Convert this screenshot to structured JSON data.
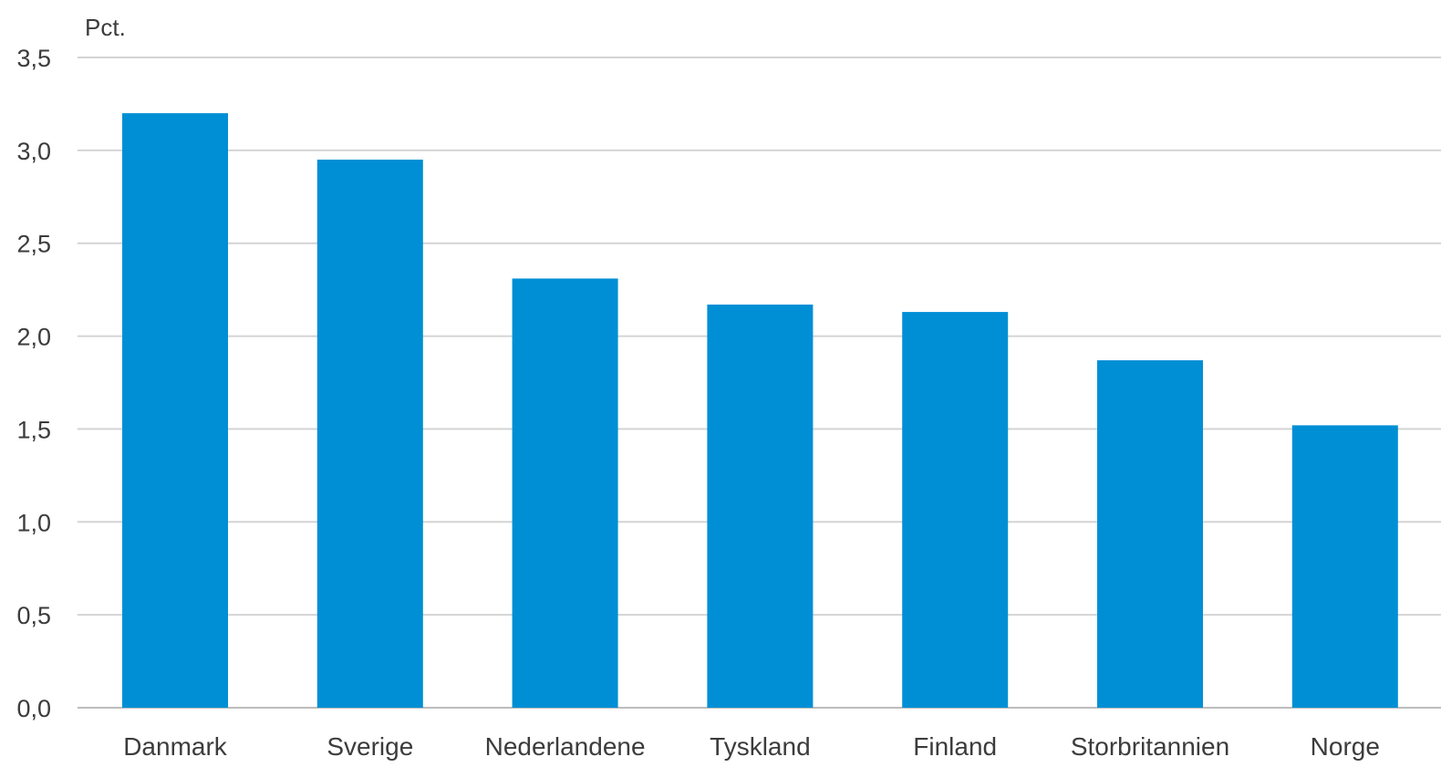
{
  "chart_data": {
    "type": "bar",
    "unit_label": "Pct.",
    "categories": [
      "Danmark",
      "Sverige",
      "Nederlandene",
      "Tyskland",
      "Finland",
      "Storbritannien",
      "Norge"
    ],
    "values": [
      3.2,
      2.95,
      2.31,
      2.17,
      2.13,
      1.87,
      1.52
    ],
    "ylim": [
      0,
      3.5
    ],
    "yticks": [
      {
        "value": 0,
        "label": "0,0"
      },
      {
        "value": 0.5,
        "label": "0,5"
      },
      {
        "value": 1,
        "label": "1,0"
      },
      {
        "value": 1.5,
        "label": "1,5"
      },
      {
        "value": 2,
        "label": "2,0"
      },
      {
        "value": 2.5,
        "label": "2,5"
      },
      {
        "value": 3,
        "label": "3,0"
      },
      {
        "value": 3.5,
        "label": "3,5"
      }
    ],
    "grid": true,
    "legend": "none",
    "bar_color": "#008fd5"
  }
}
